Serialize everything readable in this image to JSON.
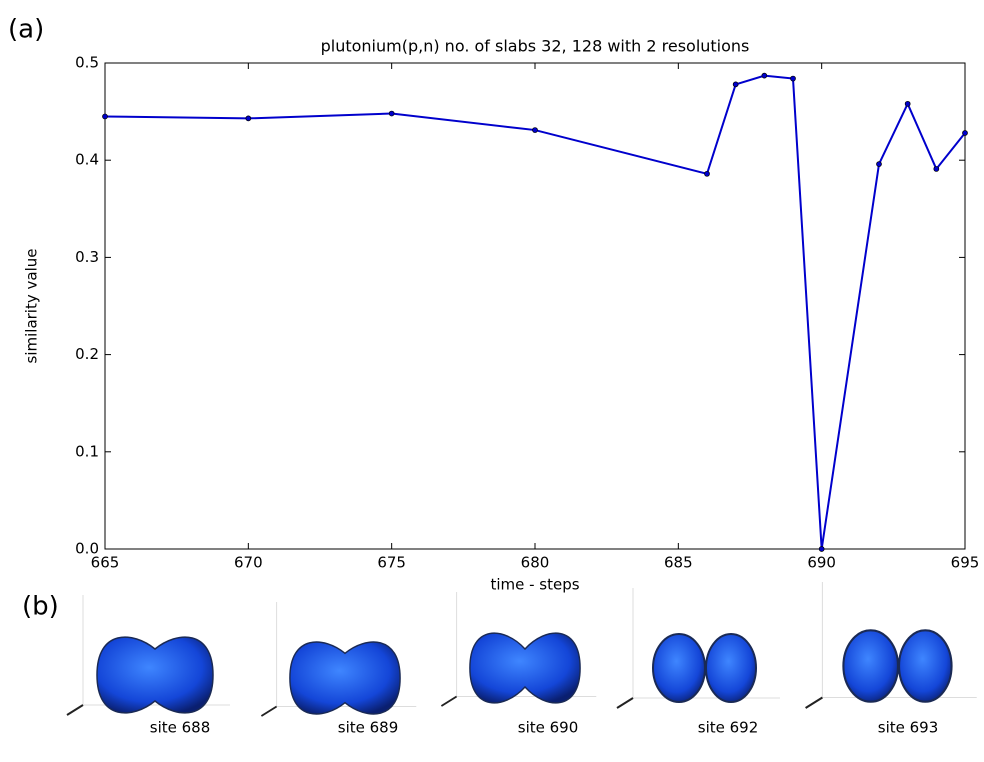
{
  "chart_data": {
    "type": "line",
    "title": "plutonium(p,n) no. of slabs 32, 128 with 2 resolutions",
    "x_label": "time - steps",
    "y_label": "similarity value",
    "x": [
      665,
      670,
      675,
      680,
      686,
      687,
      688,
      689,
      690,
      692,
      693,
      694,
      695
    ],
    "series": [
      {
        "color": "#0000cc",
        "values": [
          0.445,
          0.443,
          0.448,
          0.431,
          0.386,
          0.478,
          0.487,
          0.484,
          0.0,
          0.396,
          0.458,
          0.391,
          0.428
        ]
      }
    ],
    "xlim": [
      665,
      695
    ],
    "xticks": [
      665,
      670,
      675,
      680,
      685,
      690,
      695
    ],
    "ylim": [
      0,
      0.5
    ],
    "yticks": [
      {
        "value": 0,
        "label": "0.0"
      },
      0.1,
      0.2,
      0.3,
      0.4,
      0.5
    ],
    "grid": false
  },
  "figure": {
    "label_a": "(a)",
    "label_b": "(b)",
    "sites": [
      "site 688",
      "site 689",
      "site 690",
      "site 692",
      "site 693"
    ]
  }
}
